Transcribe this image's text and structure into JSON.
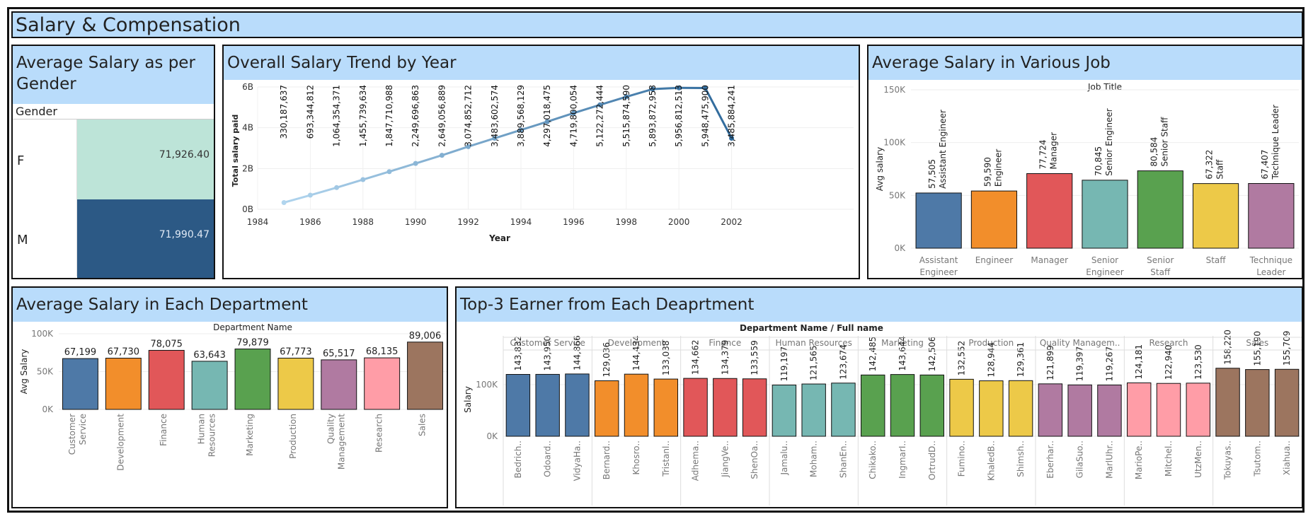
{
  "dashboard": {
    "title": "Salary & Compensation",
    "colors": {
      "header": "#b9dcfb",
      "border": "#111111"
    }
  },
  "gender_panel": {
    "title": "Average Salary as per Gender",
    "column_header": "Gender",
    "rows": [
      {
        "label": "F",
        "value": "71,926.40",
        "color": "#bde4d8",
        "text_color": "#333333"
      },
      {
        "label": "M",
        "value": "71,990.47",
        "color": "#2c5985",
        "text_color": "#dfe9f5"
      }
    ]
  },
  "trend_panel": {
    "title": "Overall Salary Trend by Year"
  },
  "job_panel": {
    "title": "Average Salary in Various Job"
  },
  "dept_panel": {
    "title": "Average Salary in Each Department"
  },
  "top3_panel": {
    "title": "Top-3 Earner from Each Deaprtment"
  },
  "chart_data": [
    {
      "id": "trend",
      "type": "line",
      "xlabel": "Year",
      "ylabel": "Total salary paid",
      "x": [
        1985,
        1986,
        1987,
        1988,
        1989,
        1990,
        1991,
        1992,
        1993,
        1994,
        1995,
        1996,
        1997,
        1998,
        1999,
        2000,
        2001,
        2002
      ],
      "values": [
        330187637,
        693344812,
        1064354371,
        1455739634,
        1847710988,
        2249696863,
        2649056889,
        3074852712,
        3483602574,
        3889568129,
        4297018475,
        4719800054,
        5122272444,
        5515874590,
        5893872958,
        5956812513,
        5948475900,
        3485884241
      ],
      "labels": [
        "330,187,637",
        "693,344,812",
        "1,064,354,371",
        "1,455,739,634",
        "1,847,710,988",
        "2,249,696,863",
        "2,649,056,889",
        "3,074,852,712",
        "3,483,602,574",
        "3,889,568,129",
        "4,297,018,475",
        "4,719,800,054",
        "5,122,272,444",
        "5,515,874,590",
        "5,893,872,958",
        "5,956,812,513",
        "5,948,475,900",
        "3,485,884,241"
      ],
      "xticks": [
        "1984",
        "1986",
        "1988",
        "1990",
        "1992",
        "1994",
        "1996",
        "1998",
        "2000",
        "2002"
      ],
      "yticks": [
        "0B",
        "2B",
        "4B",
        "6B"
      ],
      "xlim": [
        1984,
        2002.2
      ],
      "ylim": [
        0,
        6000000000
      ],
      "colors": {
        "start": "#b1d5ee",
        "end": "#2f6a9c"
      },
      "grid": true
    },
    {
      "id": "job",
      "type": "bar",
      "header": "Job Title",
      "ylabel": "Avg salary",
      "categories": [
        "Assistant Engineer",
        "Engineer",
        "Manager",
        "Senior Engineer",
        "Senior Staff",
        "Staff",
        "Technique Leader"
      ],
      "xtick_lines": [
        [
          "Assistant",
          "Engineer"
        ],
        [
          "Engineer"
        ],
        [
          "Manager"
        ],
        [
          "Senior",
          "Engineer"
        ],
        [
          "Senior",
          "Staff"
        ],
        [
          "Staff"
        ],
        [
          "Technique",
          "Leader"
        ]
      ],
      "values": [
        57505,
        59590,
        77724,
        70845,
        80584,
        67322,
        67407
      ],
      "labels": [
        "57,505",
        "59,590",
        "77,724",
        "70,845",
        "80,584",
        "67,322",
        "67,407"
      ],
      "colors": [
        "#4e79a7",
        "#f28e2b",
        "#e15759",
        "#76b7b2",
        "#59a14f",
        "#edc948",
        "#b07aa1"
      ],
      "yticks": [
        "0K",
        "50K",
        "100K",
        "150K"
      ],
      "ylim": [
        0,
        165000
      ]
    },
    {
      "id": "dept",
      "type": "bar",
      "header": "Department Name",
      "ylabel": "Avg Salary",
      "categories": [
        "Customer Service",
        "Development",
        "Finance",
        "Human Resources",
        "Marketing",
        "Production",
        "Quality Management",
        "Research",
        "Sales"
      ],
      "xtick_lines": [
        [
          "Customer",
          "Service"
        ],
        [
          "Development"
        ],
        [
          "Finance"
        ],
        [
          "Human",
          "Resources"
        ],
        [
          "Marketing"
        ],
        [
          "Production"
        ],
        [
          "Quality",
          "Management"
        ],
        [
          "Research"
        ],
        [
          "Sales"
        ]
      ],
      "values": [
        67199,
        67730,
        78075,
        63643,
        79879,
        67773,
        65517,
        68135,
        89006
      ],
      "labels": [
        "67,199",
        "67,730",
        "78,075",
        "63,643",
        "79,879",
        "67,773",
        "65,517",
        "68,135",
        "89,006"
      ],
      "colors": [
        "#4e79a7",
        "#f28e2b",
        "#e15759",
        "#76b7b2",
        "#59a14f",
        "#edc948",
        "#b07aa1",
        "#ff9da7",
        "#9c755f"
      ],
      "yticks": [
        "0K",
        "50K",
        "100K"
      ],
      "ylim": [
        0,
        100000
      ]
    },
    {
      "id": "top3",
      "type": "bar",
      "header": "Department Name  /  Full name",
      "ylabel": "Salary",
      "groups": [
        {
          "name": "Customer Service",
          "color": "#4e79a7",
          "names": [
            "Bedrich..",
            "Odoard..",
            "VidyaHa.."
          ],
          "values": [
            143832,
            143950,
            144866
          ],
          "labels": [
            "143,832",
            "143,950",
            "144,866"
          ]
        },
        {
          "name": "Development",
          "color": "#f28e2b",
          "names": [
            "Bernard..",
            "Khosro..",
            "Tristanl.."
          ],
          "values": [
            129036,
            144434,
            133038
          ],
          "labels": [
            "129,036",
            "144,434",
            "133,038"
          ]
        },
        {
          "name": "Finance",
          "color": "#e15759",
          "names": [
            "Adhema..",
            "JiangVe..",
            "ShenOa.."
          ],
          "values": [
            134662,
            134379,
            133559
          ],
          "labels": [
            "134,662",
            "134,379",
            "133,559"
          ]
        },
        {
          "name": "Human Resources",
          "color": "#76b7b2",
          "names": [
            "Jamalu..",
            "Moham..",
            "ShanEn.."
          ],
          "values": [
            119197,
            121565,
            123674
          ],
          "labels": [
            "119,197",
            "121,565",
            "123,674"
          ]
        },
        {
          "name": "Marketing",
          "color": "#59a14f",
          "names": [
            "Chikako..",
            "IngmarI..",
            "OrtrudD.."
          ],
          "values": [
            142485,
            143644,
            142506
          ],
          "labels": [
            "142,485",
            "143,644",
            "142,506"
          ]
        },
        {
          "name": "Production",
          "color": "#edc948",
          "names": [
            "Fumino..",
            "KhaledB..",
            "Shimsh.."
          ],
          "values": [
            132552,
            128944,
            129361
          ],
          "labels": [
            "132,552",
            "128,944",
            "129,361"
          ]
        },
        {
          "name": "Quality Managem..",
          "color": "#b07aa1",
          "names": [
            "Eberhar..",
            "GilaSuo..",
            "MarlUhr.."
          ],
          "values": [
            121899,
            119397,
            119267
          ],
          "labels": [
            "121,899",
            "119,397",
            "119,267"
          ]
        },
        {
          "name": "Research",
          "color": "#ff9da7",
          "names": [
            "MarioPe..",
            "Mitchel..",
            "UtzMen.."
          ],
          "values": [
            124181,
            122940,
            123530
          ],
          "labels": [
            "124,181",
            "122,940",
            "123,530"
          ]
        },
        {
          "name": "Sales",
          "color": "#9c755f",
          "names": [
            "Tokuyas..",
            "Tsutom..",
            "Xiahua.."
          ],
          "values": [
            158220,
            155190,
            155709
          ],
          "labels": [
            "158,220",
            "155,190",
            "155,709"
          ]
        }
      ],
      "yticks": [
        "0K",
        "100K",
        "200K"
      ],
      "ylim": [
        0,
        240000
      ]
    }
  ]
}
